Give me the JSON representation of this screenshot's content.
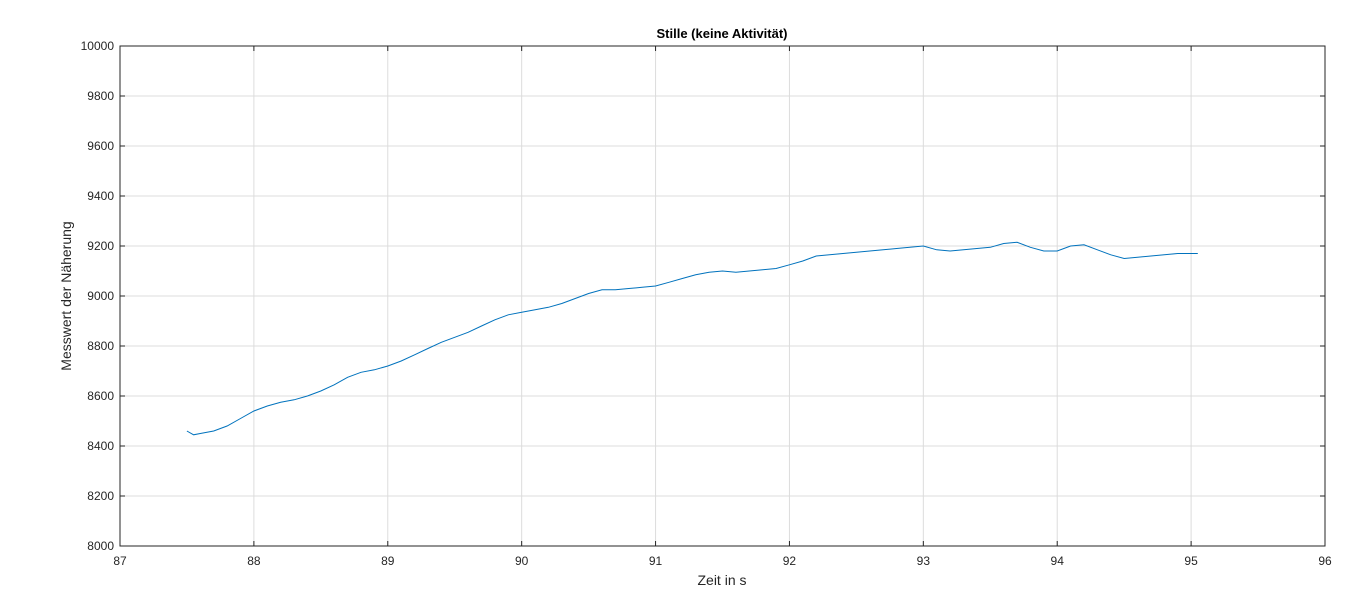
{
  "chart_data": {
    "type": "line",
    "title": "Stille (keine Aktivität)",
    "xlabel": "Zeit in s",
    "ylabel": "Messwert der Näherung",
    "xlim": [
      87,
      96
    ],
    "ylim": [
      8000,
      10000
    ],
    "xticks": [
      87,
      88,
      89,
      90,
      91,
      92,
      93,
      94,
      95,
      96
    ],
    "yticks": [
      8000,
      8200,
      8400,
      8600,
      8800,
      9000,
      9200,
      9400,
      9600,
      9800,
      10000
    ],
    "grid": true,
    "line_color": "#0072BD",
    "series": [
      {
        "x": [
          87.5,
          87.55,
          87.6,
          87.7,
          87.8,
          87.9,
          88.0,
          88.1,
          88.2,
          88.3,
          88.4,
          88.5,
          88.6,
          88.7,
          88.8,
          88.9,
          89.0,
          89.1,
          89.2,
          89.3,
          89.4,
          89.5,
          89.6,
          89.7,
          89.8,
          89.9,
          90.0,
          90.1,
          90.2,
          90.3,
          90.4,
          90.5,
          90.6,
          90.7,
          90.8,
          90.9,
          91.0,
          91.1,
          91.2,
          91.3,
          91.4,
          91.5,
          91.6,
          91.7,
          91.8,
          91.9,
          92.0,
          92.1,
          92.2,
          92.3,
          92.4,
          92.5,
          92.6,
          92.7,
          92.8,
          92.9,
          93.0,
          93.1,
          93.2,
          93.3,
          93.4,
          93.5,
          93.6,
          93.7,
          93.8,
          93.9,
          94.0,
          94.1,
          94.2,
          94.3,
          94.4,
          94.5,
          94.6,
          94.7,
          94.8,
          94.9,
          95.0,
          95.05
        ],
        "y": [
          8460,
          8445,
          8450,
          8460,
          8480,
          8510,
          8540,
          8560,
          8575,
          8585,
          8600,
          8620,
          8645,
          8675,
          8695,
          8705,
          8720,
          8740,
          8765,
          8790,
          8815,
          8835,
          8855,
          8880,
          8905,
          8925,
          8935,
          8945,
          8955,
          8970,
          8990,
          9010,
          9025,
          9025,
          9030,
          9035,
          9040,
          9055,
          9070,
          9085,
          9095,
          9100,
          9095,
          9100,
          9105,
          9110,
          9125,
          9140,
          9160,
          9165,
          9170,
          9175,
          9180,
          9185,
          9190,
          9195,
          9200,
          9185,
          9180,
          9185,
          9190,
          9195,
          9210,
          9215,
          9195,
          9180,
          9180,
          9200,
          9205,
          9185,
          9165,
          9150,
          9155,
          9160,
          9165,
          9170,
          9170,
          9170
        ]
      }
    ]
  }
}
